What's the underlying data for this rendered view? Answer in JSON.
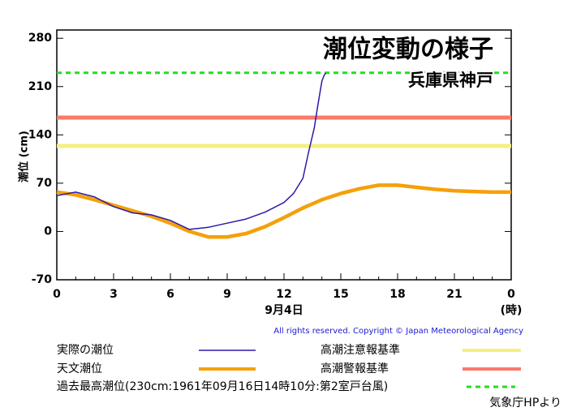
{
  "chart_data": {
    "type": "line",
    "title": "潮位変動の様子",
    "subtitle": "兵庫県神戸",
    "y_label": "潮位 (cm)",
    "x_label": "9月4日",
    "x_unit": "(時)",
    "copyright": "All rights reserved. Copyright © Japan Meteorological Agency",
    "source": "気象庁HPより",
    "xlim": [
      0,
      24
    ],
    "xticks": [
      0,
      3,
      6,
      9,
      12,
      15,
      18,
      21,
      {
        "value": 24,
        "label": "0"
      }
    ],
    "ylim": [
      -70,
      292
    ],
    "yticks": [
      -70,
      0,
      70,
      140,
      210,
      280
    ],
    "series": [
      {
        "name": "実際の潮位",
        "color": "#2a1aa8",
        "x": [
          0,
          1,
          2,
          3,
          4,
          5,
          6,
          7,
          8,
          9,
          10,
          11,
          12,
          12.5,
          13,
          13.3,
          13.6,
          13.8,
          14,
          14.1,
          14.2
        ],
        "values": [
          52,
          57,
          50,
          36,
          27,
          24,
          16,
          3,
          6,
          12,
          18,
          28,
          42,
          55,
          77,
          115,
          150,
          185,
          218,
          225,
          230
        ]
      },
      {
        "name": "天文潮位",
        "color": "#f5a00a",
        "x": [
          0,
          1,
          2,
          3,
          4,
          5,
          6,
          7,
          8,
          9,
          10,
          11,
          12,
          13,
          14,
          15,
          16,
          17,
          18,
          19,
          20,
          21,
          22,
          23,
          24
        ],
        "values": [
          57,
          53,
          46,
          38,
          30,
          22,
          12,
          0,
          -8,
          -8,
          -3,
          7,
          20,
          34,
          46,
          55,
          62,
          67,
          67,
          64,
          61,
          59,
          58,
          57,
          57
        ]
      }
    ],
    "reference_lines": [
      {
        "name": "高潮注意報基準",
        "color": "#f5f080",
        "value": 124
      },
      {
        "name": "高潮警報基準",
        "color": "#fa7a6a",
        "value": 165
      },
      {
        "name": "過去最高潮位(230cm:1961年09月16日14時10分:第2室戸台風)",
        "color": "#22dd22",
        "value": 230,
        "dashed": true
      }
    ]
  }
}
